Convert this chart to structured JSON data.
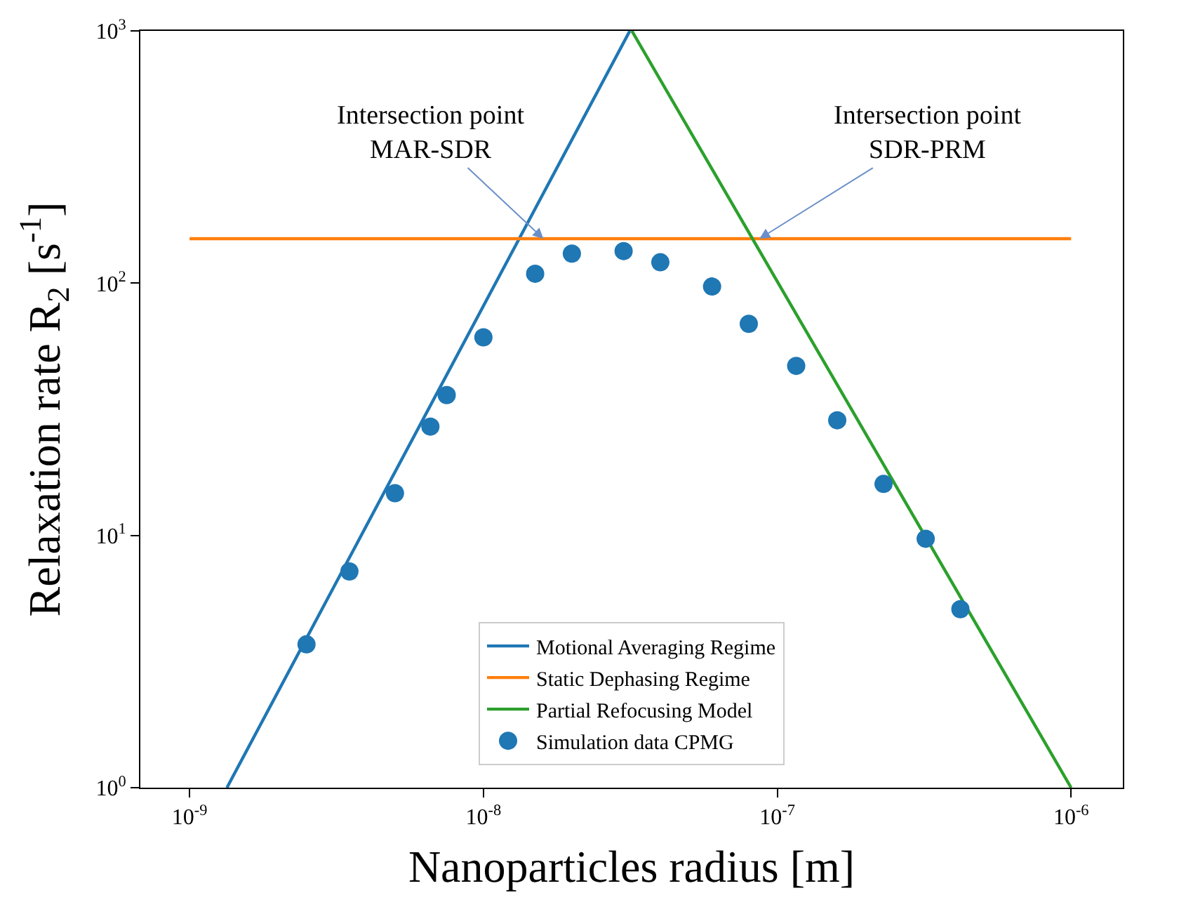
{
  "chart_data": {
    "type": "line",
    "xlabel": "Nanoparticles radius [m]",
    "ylabel": "Relaxation rate R$_{2}$ [s$^{-1}$]",
    "log": "xy",
    "legend": "bottom",
    "xlim": [
      6.8e-10,
      1.5e-06
    ],
    "ylim": [
      1,
      1000
    ],
    "xticks": [
      {
        "value": 1e-09,
        "label": "10$^{-9}$"
      },
      {
        "value": 1e-08,
        "label": "10$^{-8}$"
      },
      {
        "value": 1e-07,
        "label": "10$^{-7}$"
      },
      {
        "value": 1e-06,
        "label": "10$^{-6}$"
      }
    ],
    "yticks": [
      {
        "value": 1,
        "label": "10$^{0}$"
      },
      {
        "value": 10,
        "label": "10$^{1}$"
      },
      {
        "value": 100,
        "label": "10$^{2}$"
      },
      {
        "value": 1000,
        "label": "10$^{3}$"
      }
    ],
    "series": [
      {
        "name": "Motional Averaging Regime",
        "marker": "none",
        "color": "#1f77b4",
        "x": [
          1.34e-09,
          3.15e-08
        ],
        "values": [
          1,
          1000
        ]
      },
      {
        "name": "Static Dephasing Regime",
        "marker": "none",
        "color": "#ff7f0e",
        "x": [
          1e-09,
          1e-06
        ],
        "values": [
          150,
          150
        ]
      },
      {
        "name": "Partial Refocusing Model",
        "marker": "none",
        "color": "#2ca02c",
        "x": [
          3.2e-08,
          1e-06
        ],
        "values": [
          1000,
          1
        ]
      },
      {
        "name": "Simulation data CPMG",
        "type": "scatter",
        "marker": "circle",
        "color": "#1f77b4",
        "x": [
          2.5e-09,
          3.5e-09,
          5e-09,
          6.6e-09,
          7.5e-09,
          1e-08,
          1.5e-08,
          2e-08,
          3e-08,
          4e-08,
          6e-08,
          8e-08,
          1.16e-07,
          1.6e-07,
          2.3e-07,
          3.2e-07,
          4.2e-07
        ],
        "values": [
          3.7,
          7.2,
          14.7,
          27,
          36,
          61,
          109,
          131,
          134,
          121,
          97,
          69,
          47,
          28.6,
          16,
          9.7,
          5.1
        ]
      }
    ],
    "annotations": [
      {
        "text": "Intersection point\nMAR-SDR",
        "x": 1.6e-08,
        "y": 150
      },
      {
        "text": "Intersection point\nSDR-PRM",
        "x": 8.7e-08,
        "y": 150
      }
    ]
  }
}
